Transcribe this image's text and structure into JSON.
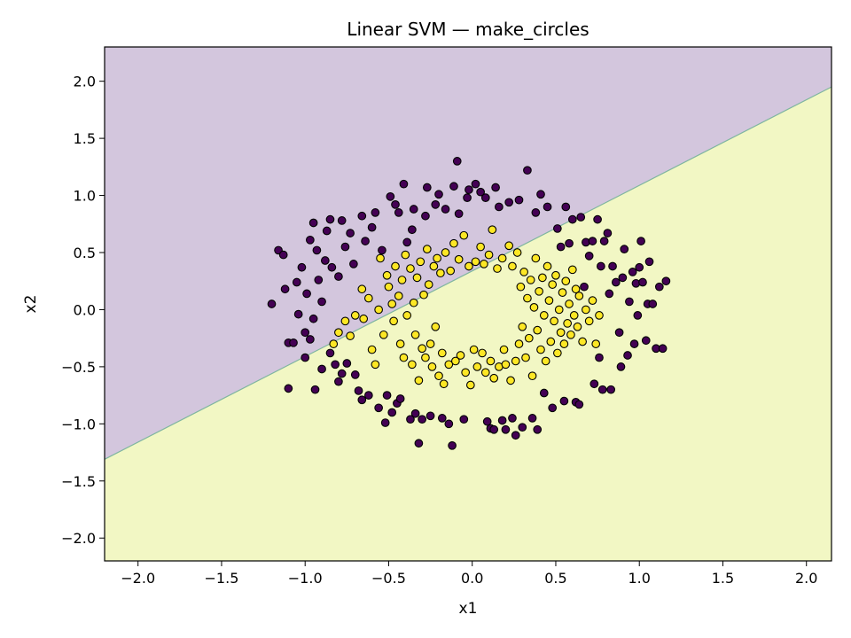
{
  "chart_data": {
    "type": "scatter",
    "title": "Linear SVM — make_circles",
    "xlabel": "x1",
    "ylabel": "x2",
    "xlim": [
      -2.2,
      2.15
    ],
    "ylim": [
      -2.2,
      2.3
    ],
    "xticks": [
      -2.0,
      -1.5,
      -1.0,
      -0.5,
      0.0,
      0.5,
      1.0,
      1.5,
      2.0
    ],
    "yticks": [
      -2.0,
      -1.5,
      -1.0,
      -0.5,
      0.0,
      0.5,
      1.0,
      1.5,
      2.0
    ],
    "xtick_labels": [
      "−2.0",
      "−1.5",
      "−1.0",
      "−0.5",
      "0.0",
      "0.5",
      "1.0",
      "1.5",
      "2.0"
    ],
    "ytick_labels": [
      "−2.0",
      "−1.5",
      "−1.0",
      "−0.5",
      "0.0",
      "0.5",
      "1.0",
      "1.5",
      "2.0"
    ],
    "grid": false,
    "decision_boundary": {
      "type": "linear",
      "points": [
        [
          -2.2,
          -1.31
        ],
        [
          2.15,
          1.95
        ]
      ],
      "upper_region": {
        "class": 0,
        "color": "#d3c6dd"
      },
      "lower_region": {
        "class": 1,
        "color": "#f2f7c4"
      },
      "line_color": "#7fb5a0"
    },
    "series": [
      {
        "class": 0,
        "color": "#440154",
        "edge_color": "#000000",
        "points": [
          [
            -1.2,
            0.05
          ],
          [
            -1.16,
            0.52
          ],
          [
            -1.13,
            0.48
          ],
          [
            -1.12,
            0.18
          ],
          [
            -1.1,
            -0.29
          ],
          [
            -1.1,
            -0.69
          ],
          [
            -1.07,
            -0.29
          ],
          [
            -1.05,
            0.24
          ],
          [
            -1.04,
            -0.04
          ],
          [
            -1.02,
            0.37
          ],
          [
            -1.0,
            -0.42
          ],
          [
            -1.0,
            -0.2
          ],
          [
            -0.99,
            0.14
          ],
          [
            -0.97,
            0.61
          ],
          [
            -0.97,
            -0.26
          ],
          [
            -0.95,
            0.76
          ],
          [
            -0.95,
            -0.08
          ],
          [
            -0.94,
            -0.7
          ],
          [
            -0.93,
            0.52
          ],
          [
            -0.92,
            0.26
          ],
          [
            -0.9,
            -0.52
          ],
          [
            -0.9,
            0.07
          ],
          [
            -0.88,
            0.43
          ],
          [
            -0.87,
            0.69
          ],
          [
            -0.85,
            0.79
          ],
          [
            -0.85,
            -0.38
          ],
          [
            -0.84,
            0.37
          ],
          [
            -0.82,
            -0.48
          ],
          [
            -0.8,
            -0.63
          ],
          [
            -0.8,
            0.29
          ],
          [
            -0.78,
            0.78
          ],
          [
            -0.78,
            -0.56
          ],
          [
            -0.76,
            0.55
          ],
          [
            -0.75,
            -0.47
          ],
          [
            -0.73,
            0.67
          ],
          [
            -0.71,
            0.4
          ],
          [
            -0.7,
            -0.57
          ],
          [
            -0.68,
            -0.71
          ],
          [
            -0.66,
            0.82
          ],
          [
            -0.66,
            -0.79
          ],
          [
            -0.64,
            0.6
          ],
          [
            -0.62,
            -0.75
          ],
          [
            -0.6,
            0.72
          ],
          [
            -0.58,
            0.85
          ],
          [
            -0.56,
            -0.86
          ],
          [
            -0.54,
            0.52
          ],
          [
            -0.52,
            -0.99
          ],
          [
            -0.51,
            -0.75
          ],
          [
            -0.49,
            0.99
          ],
          [
            -0.48,
            -0.9
          ],
          [
            -0.46,
            0.92
          ],
          [
            -0.45,
            -0.82
          ],
          [
            -0.44,
            0.85
          ],
          [
            -0.43,
            -0.78
          ],
          [
            -0.41,
            1.1
          ],
          [
            -0.39,
            0.59
          ],
          [
            -0.37,
            -0.96
          ],
          [
            -0.36,
            0.7
          ],
          [
            -0.35,
            0.88
          ],
          [
            -0.34,
            -0.91
          ],
          [
            -0.32,
            -1.17
          ],
          [
            -0.3,
            -0.96
          ],
          [
            -0.28,
            0.82
          ],
          [
            -0.27,
            1.07
          ],
          [
            -0.25,
            -0.93
          ],
          [
            -0.22,
            0.92
          ],
          [
            -0.2,
            1.01
          ],
          [
            -0.18,
            -0.95
          ],
          [
            -0.16,
            0.88
          ],
          [
            -0.14,
            -1.0
          ],
          [
            -0.12,
            -1.19
          ],
          [
            -0.11,
            1.08
          ],
          [
            -0.09,
            1.3
          ],
          [
            -0.08,
            0.84
          ],
          [
            -0.05,
            -0.96
          ],
          [
            -0.03,
            0.98
          ],
          [
            -0.02,
            1.05
          ],
          [
            0.02,
            1.1
          ],
          [
            0.05,
            1.03
          ],
          [
            0.08,
            0.98
          ],
          [
            0.09,
            -0.98
          ],
          [
            0.11,
            -1.04
          ],
          [
            0.13,
            -1.05
          ],
          [
            0.14,
            1.07
          ],
          [
            0.16,
            0.9
          ],
          [
            0.18,
            -0.97
          ],
          [
            0.2,
            -1.05
          ],
          [
            0.22,
            0.94
          ],
          [
            0.24,
            -0.95
          ],
          [
            0.26,
            -1.1
          ],
          [
            0.28,
            0.96
          ],
          [
            0.3,
            -1.03
          ],
          [
            0.33,
            1.22
          ],
          [
            0.36,
            -0.95
          ],
          [
            0.38,
            0.85
          ],
          [
            0.39,
            -1.05
          ],
          [
            0.41,
            1.01
          ],
          [
            0.43,
            -0.73
          ],
          [
            0.45,
            0.9
          ],
          [
            0.48,
            -0.86
          ],
          [
            0.51,
            0.71
          ],
          [
            0.53,
            0.55
          ],
          [
            0.55,
            -0.8
          ],
          [
            0.56,
            0.9
          ],
          [
            0.58,
            0.58
          ],
          [
            0.6,
            0.79
          ],
          [
            0.62,
            -0.81
          ],
          [
            0.64,
            -0.83
          ],
          [
            0.65,
            0.81
          ],
          [
            0.67,
            0.2
          ],
          [
            0.68,
            0.59
          ],
          [
            0.7,
            0.47
          ],
          [
            0.72,
            0.6
          ],
          [
            0.73,
            -0.65
          ],
          [
            0.75,
            0.79
          ],
          [
            0.76,
            -0.42
          ],
          [
            0.77,
            0.38
          ],
          [
            0.78,
            -0.7
          ],
          [
            0.79,
            0.6
          ],
          [
            0.81,
            0.67
          ],
          [
            0.82,
            0.14
          ],
          [
            0.83,
            -0.7
          ],
          [
            0.84,
            0.38
          ],
          [
            0.86,
            0.24
          ],
          [
            0.88,
            -0.2
          ],
          [
            0.89,
            -0.5
          ],
          [
            0.9,
            0.28
          ],
          [
            0.91,
            0.53
          ],
          [
            0.93,
            -0.4
          ],
          [
            0.94,
            0.07
          ],
          [
            0.96,
            0.33
          ],
          [
            0.97,
            -0.3
          ],
          [
            0.98,
            0.23
          ],
          [
            0.99,
            -0.05
          ],
          [
            1.0,
            0.37
          ],
          [
            1.01,
            0.6
          ],
          [
            1.02,
            0.24
          ],
          [
            1.04,
            -0.27
          ],
          [
            1.05,
            0.05
          ],
          [
            1.06,
            0.42
          ],
          [
            1.08,
            0.05
          ],
          [
            1.1,
            -0.34
          ],
          [
            1.12,
            0.2
          ],
          [
            1.14,
            -0.34
          ],
          [
            1.16,
            0.25
          ]
        ]
      },
      {
        "class": 1,
        "color": "#fde725",
        "edge_color": "#000000",
        "points": [
          [
            -0.83,
            -0.3
          ],
          [
            -0.8,
            -0.2
          ],
          [
            -0.76,
            -0.1
          ],
          [
            -0.73,
            -0.23
          ],
          [
            -0.7,
            -0.05
          ],
          [
            -0.66,
            0.18
          ],
          [
            -0.65,
            -0.08
          ],
          [
            -0.62,
            0.1
          ],
          [
            -0.6,
            -0.35
          ],
          [
            -0.58,
            -0.48
          ],
          [
            -0.56,
            0.0
          ],
          [
            -0.55,
            0.45
          ],
          [
            -0.53,
            -0.22
          ],
          [
            -0.51,
            0.3
          ],
          [
            -0.5,
            0.2
          ],
          [
            -0.48,
            0.05
          ],
          [
            -0.47,
            -0.1
          ],
          [
            -0.46,
            0.38
          ],
          [
            -0.44,
            0.12
          ],
          [
            -0.43,
            -0.3
          ],
          [
            -0.42,
            0.26
          ],
          [
            -0.41,
            -0.42
          ],
          [
            -0.4,
            0.48
          ],
          [
            -0.39,
            -0.05
          ],
          [
            -0.37,
            0.36
          ],
          [
            -0.36,
            -0.48
          ],
          [
            -0.35,
            0.06
          ],
          [
            -0.34,
            -0.22
          ],
          [
            -0.33,
            0.28
          ],
          [
            -0.32,
            -0.62
          ],
          [
            -0.31,
            0.42
          ],
          [
            -0.3,
            -0.34
          ],
          [
            -0.29,
            0.13
          ],
          [
            -0.28,
            -0.42
          ],
          [
            -0.27,
            0.53
          ],
          [
            -0.26,
            0.22
          ],
          [
            -0.25,
            -0.3
          ],
          [
            -0.24,
            -0.5
          ],
          [
            -0.23,
            0.38
          ],
          [
            -0.22,
            -0.15
          ],
          [
            -0.21,
            0.45
          ],
          [
            -0.2,
            -0.58
          ],
          [
            -0.19,
            0.32
          ],
          [
            -0.18,
            -0.38
          ],
          [
            -0.17,
            -0.65
          ],
          [
            -0.16,
            0.5
          ],
          [
            -0.14,
            -0.48
          ],
          [
            -0.13,
            0.34
          ],
          [
            -0.11,
            0.58
          ],
          [
            -0.1,
            -0.45
          ],
          [
            -0.08,
            0.44
          ],
          [
            -0.07,
            -0.4
          ],
          [
            -0.05,
            0.65
          ],
          [
            -0.04,
            -0.55
          ],
          [
            -0.02,
            0.38
          ],
          [
            -0.01,
            -0.66
          ],
          [
            0.01,
            -0.35
          ],
          [
            0.02,
            0.42
          ],
          [
            0.03,
            -0.5
          ],
          [
            0.05,
            0.55
          ],
          [
            0.06,
            -0.38
          ],
          [
            0.07,
            0.4
          ],
          [
            0.08,
            -0.55
          ],
          [
            0.1,
            0.48
          ],
          [
            0.11,
            -0.45
          ],
          [
            0.12,
            0.7
          ],
          [
            0.13,
            -0.6
          ],
          [
            0.15,
            0.36
          ],
          [
            0.16,
            -0.5
          ],
          [
            0.18,
            0.45
          ],
          [
            0.19,
            -0.35
          ],
          [
            0.2,
            -0.48
          ],
          [
            0.22,
            0.56
          ],
          [
            0.23,
            -0.62
          ],
          [
            0.24,
            0.38
          ],
          [
            0.26,
            -0.45
          ],
          [
            0.27,
            0.5
          ],
          [
            0.28,
            -0.3
          ],
          [
            0.29,
            0.2
          ],
          [
            0.3,
            -0.15
          ],
          [
            0.31,
            0.33
          ],
          [
            0.32,
            -0.42
          ],
          [
            0.33,
            0.1
          ],
          [
            0.34,
            -0.25
          ],
          [
            0.35,
            0.26
          ],
          [
            0.36,
            -0.58
          ],
          [
            0.37,
            0.02
          ],
          [
            0.38,
            0.45
          ],
          [
            0.39,
            -0.18
          ],
          [
            0.4,
            0.16
          ],
          [
            0.41,
            -0.35
          ],
          [
            0.42,
            0.28
          ],
          [
            0.43,
            -0.05
          ],
          [
            0.44,
            -0.45
          ],
          [
            0.45,
            0.38
          ],
          [
            0.46,
            0.08
          ],
          [
            0.47,
            -0.28
          ],
          [
            0.48,
            0.22
          ],
          [
            0.49,
            -0.1
          ],
          [
            0.5,
            0.3
          ],
          [
            0.51,
            -0.38
          ],
          [
            0.52,
            0.0
          ],
          [
            0.53,
            -0.2
          ],
          [
            0.54,
            0.15
          ],
          [
            0.55,
            -0.3
          ],
          [
            0.56,
            0.25
          ],
          [
            0.57,
            -0.12
          ],
          [
            0.58,
            0.05
          ],
          [
            0.59,
            -0.22
          ],
          [
            0.6,
            0.35
          ],
          [
            0.61,
            -0.05
          ],
          [
            0.62,
            0.18
          ],
          [
            0.63,
            -0.15
          ],
          [
            0.64,
            0.12
          ],
          [
            0.66,
            -0.28
          ],
          [
            0.68,
            0.0
          ],
          [
            0.7,
            -0.1
          ],
          [
            0.72,
            0.08
          ],
          [
            0.74,
            -0.3
          ],
          [
            0.76,
            -0.05
          ]
        ]
      }
    ]
  }
}
